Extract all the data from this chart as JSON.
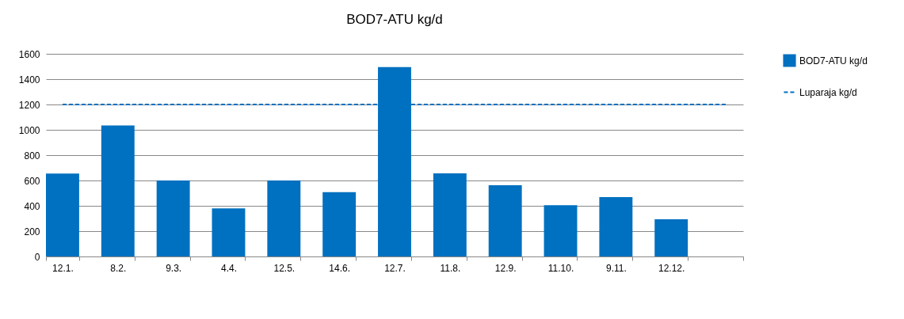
{
  "chart_data": {
    "type": "bar",
    "title": "BOD7-ATU kg/d",
    "categories": [
      "12.1.",
      "8.2.",
      "9.3.",
      "4.4.",
      "12.5.",
      "14.6.",
      "12.7.",
      "11.8.",
      "12.9.",
      "11.10.",
      "9.11.",
      "12.12.",
      null
    ],
    "series": [
      {
        "name": "BOD7-ATU kg/d",
        "color": "#0070c0",
        "values": [
          655,
          1035,
          600,
          380,
          600,
          508,
          1495,
          657,
          563,
          405,
          469,
          293,
          null
        ]
      },
      {
        "name": "Luparaja kg/d",
        "type": "line",
        "line_style": "dashed",
        "marker": "none",
        "color": "#0070c0",
        "values": [
          1200,
          1200,
          1200,
          1200,
          1200,
          1200,
          1200,
          1200,
          1200,
          1200,
          1200,
          1200,
          1200
        ]
      }
    ],
    "ylim": [
      0,
      1600
    ],
    "yticks": [
      0,
      200,
      400,
      600,
      800,
      1000,
      1200,
      1400,
      1600
    ],
    "grid": "y",
    "legend": "right"
  }
}
